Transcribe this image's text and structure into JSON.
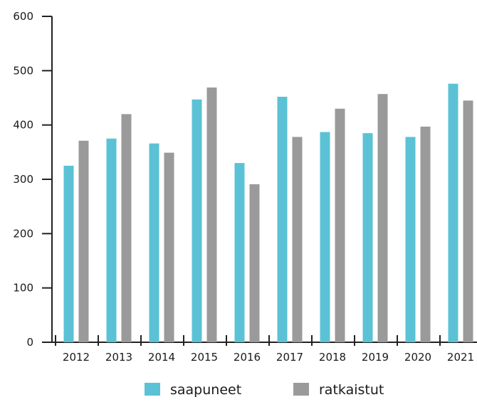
{
  "chart_data": {
    "type": "bar",
    "categories": [
      "2012",
      "2013",
      "2014",
      "2015",
      "2016",
      "2017",
      "2018",
      "2019",
      "2020",
      "2021"
    ],
    "series": [
      {
        "name": "saapuneet",
        "color": "#5bc2d6",
        "values": [
          325,
          375,
          366,
          447,
          330,
          452,
          387,
          385,
          378,
          476
        ]
      },
      {
        "name": "ratkaistut",
        "color": "#9a9a9a",
        "values": [
          371,
          420,
          349,
          469,
          291,
          378,
          430,
          457,
          397,
          445
        ]
      }
    ],
    "title": "",
    "xlabel": "",
    "ylabel": "",
    "ylim": [
      0,
      600
    ],
    "yticks": [
      "0",
      "100",
      "200",
      "300",
      "400",
      "500",
      "600"
    ],
    "grid": false,
    "legend_position": "bottom"
  }
}
